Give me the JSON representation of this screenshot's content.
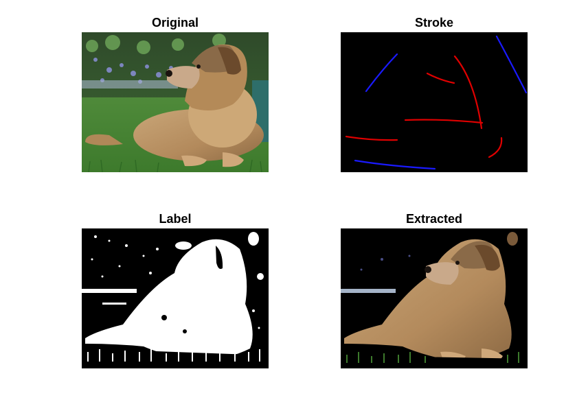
{
  "figure": {
    "panels": [
      {
        "id": "original",
        "title": "Original"
      },
      {
        "id": "stroke",
        "title": "Stroke"
      },
      {
        "id": "label",
        "title": "Label"
      },
      {
        "id": "extracted",
        "title": "Extracted"
      }
    ]
  },
  "colors": {
    "background": "#ffffff",
    "stroke_foreground": "#e00000",
    "stroke_background": "#1a1aff",
    "mask_foreground": "#ffffff",
    "mask_background": "#000000"
  }
}
